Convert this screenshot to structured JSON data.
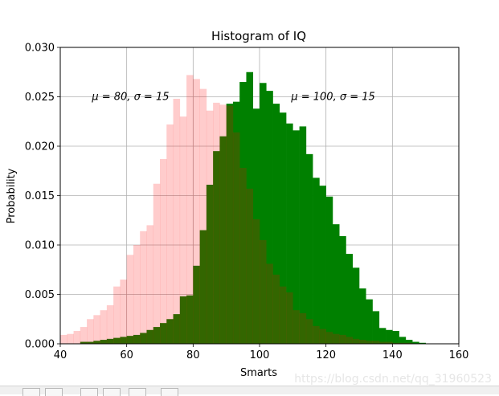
{
  "chart_data": {
    "type": "bar",
    "title": "Histogram of IQ",
    "xlabel": "Smarts",
    "ylabel": "Probability",
    "xlim": [
      40,
      160
    ],
    "ylim": [
      0,
      0.03
    ],
    "xticks": [
      "40",
      "60",
      "80",
      "100",
      "120",
      "140",
      "160"
    ],
    "yticks": [
      "0.000",
      "0.005",
      "0.010",
      "0.015",
      "0.020",
      "0.025",
      "0.030"
    ],
    "grid": true,
    "bin_width": 2,
    "series": [
      {
        "color": "#008000",
        "opacity": 1.0,
        "bin_starts": [
          46,
          48,
          50,
          52,
          54,
          56,
          58,
          60,
          62,
          64,
          66,
          68,
          70,
          72,
          74,
          76,
          78,
          80,
          82,
          84,
          86,
          88,
          90,
          92,
          94,
          96,
          98,
          100,
          102,
          104,
          106,
          108,
          110,
          112,
          114,
          116,
          118,
          120,
          122,
          124,
          126,
          128,
          130,
          132,
          134,
          136,
          138,
          140,
          142,
          144,
          146,
          148
        ],
        "values": [
          0.0002,
          0.0002,
          0.0003,
          0.0004,
          0.0005,
          0.0006,
          0.0007,
          0.0008,
          0.0009,
          0.0011,
          0.0014,
          0.0017,
          0.0021,
          0.0025,
          0.003,
          0.0048,
          0.0049,
          0.0079,
          0.0115,
          0.0161,
          0.0195,
          0.021,
          0.0243,
          0.0245,
          0.0265,
          0.0275,
          0.0238,
          0.0264,
          0.0256,
          0.0243,
          0.0234,
          0.0223,
          0.0216,
          0.022,
          0.0192,
          0.0168,
          0.016,
          0.0149,
          0.0121,
          0.0109,
          0.0091,
          0.0077,
          0.0056,
          0.0045,
          0.0033,
          0.0016,
          0.0014,
          0.0013,
          0.0007,
          0.0004,
          0.0002,
          0.0001
        ]
      },
      {
        "color": "#ff0000",
        "opacity": 0.2,
        "bin_starts": [
          40,
          42,
          44,
          46,
          48,
          50,
          52,
          54,
          56,
          58,
          60,
          62,
          64,
          66,
          68,
          70,
          72,
          74,
          76,
          78,
          80,
          82,
          84,
          86,
          88,
          90,
          92,
          94,
          96,
          98,
          100,
          102,
          104,
          106,
          108,
          110,
          112,
          114,
          116,
          118,
          120,
          122,
          124,
          126,
          128,
          130,
          132,
          134,
          136,
          138,
          140,
          142,
          144
        ],
        "values": [
          0.0009,
          0.001,
          0.0013,
          0.0017,
          0.0025,
          0.0029,
          0.0034,
          0.0039,
          0.0058,
          0.0065,
          0.009,
          0.01,
          0.0114,
          0.012,
          0.0162,
          0.0187,
          0.0222,
          0.0248,
          0.023,
          0.0272,
          0.0268,
          0.0258,
          0.0236,
          0.0244,
          0.0242,
          0.0241,
          0.0214,
          0.0178,
          0.0157,
          0.0126,
          0.0105,
          0.0081,
          0.007,
          0.0058,
          0.0052,
          0.0034,
          0.0031,
          0.0025,
          0.0018,
          0.0015,
          0.0012,
          0.001,
          0.0009,
          0.0007,
          0.0005,
          0.0004,
          0.0003,
          0.0003,
          0.0002,
          0.0002,
          0.0001,
          0.0001,
          0.0001
        ]
      }
    ],
    "annotations": [
      {
        "text": "μ = 80,  σ = 15",
        "x": 50,
        "y": 0.025
      },
      {
        "text": "μ = 100,  σ = 15",
        "x": 110,
        "y": 0.025
      }
    ]
  },
  "watermark": "https://blog.csdn.net/qq_31960523"
}
